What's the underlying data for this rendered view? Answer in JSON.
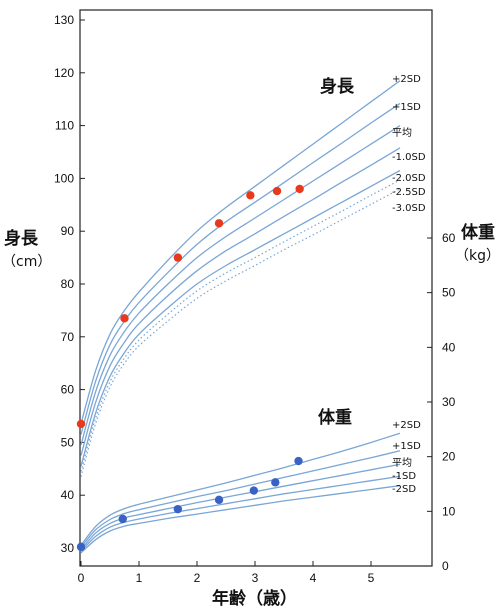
{
  "chart_data": {
    "type": "line",
    "xlabel": "年齢（歳）",
    "x_ticks": [
      "0",
      "1",
      "2",
      "3",
      "4",
      "5"
    ],
    "xlim": [
      0,
      5.5
    ],
    "left_axis": {
      "label_line1": "身長",
      "label_line2": "（cm）",
      "ticks": [
        "30",
        "40",
        "50",
        "60",
        "70",
        "80",
        "90",
        "100",
        "110",
        "120",
        "130"
      ],
      "ylim": [
        30,
        130
      ]
    },
    "right_axis": {
      "label_line1": "体重",
      "label_line2": "（kg）",
      "ticks": [
        "0",
        "10",
        "20",
        "30",
        "40",
        "50",
        "60"
      ],
      "ylim": [
        0,
        60
      ]
    },
    "height": {
      "title": "身長",
      "curve_color": "#7aa6d6",
      "curves": [
        {
          "name": "+2SD",
          "style": "solid",
          "points": [
            [
              0,
              53.5
            ],
            [
              0.25,
              63.5
            ],
            [
              0.5,
              70.5
            ],
            [
              0.75,
              75
            ],
            [
              1,
              78.5
            ],
            [
              1.5,
              84.5
            ],
            [
              2,
              90
            ],
            [
              2.5,
              94.5
            ],
            [
              3,
              98.5
            ],
            [
              3.5,
              102.5
            ],
            [
              4,
              106.5
            ],
            [
              4.5,
              110.5
            ],
            [
              5,
              114.5
            ],
            [
              5.5,
              118.5
            ]
          ]
        },
        {
          "name": "+1SD",
          "style": "solid",
          "points": [
            [
              0,
              51.5
            ],
            [
              0.25,
              61.5
            ],
            [
              0.5,
              68.5
            ],
            [
              0.75,
              73
            ],
            [
              1,
              76.5
            ],
            [
              1.5,
              82.2
            ],
            [
              2,
              87.5
            ],
            [
              2.5,
              91.8
            ],
            [
              3,
              95.5
            ],
            [
              3.5,
              99.2
            ],
            [
              4,
              103
            ],
            [
              4.5,
              106.7
            ],
            [
              5,
              110.5
            ],
            [
              5.5,
              114.2
            ]
          ]
        },
        {
          "name": "平均",
          "style": "solid",
          "points": [
            [
              0,
              49.5
            ],
            [
              0.25,
              59.5
            ],
            [
              0.5,
              66.5
            ],
            [
              0.75,
              71
            ],
            [
              1,
              74.5
            ],
            [
              1.5,
              80
            ],
            [
              2,
              85
            ],
            [
              2.5,
              89
            ],
            [
              3,
              92.5
            ],
            [
              3.5,
              96
            ],
            [
              4,
              99.5
            ],
            [
              4.5,
              103
            ],
            [
              5,
              106.5
            ],
            [
              5.5,
              110
            ]
          ]
        },
        {
          "name": "-1.0SD",
          "style": "solid",
          "points": [
            [
              0,
              47.5
            ],
            [
              0.25,
              57.5
            ],
            [
              0.5,
              64.5
            ],
            [
              0.75,
              69
            ],
            [
              1,
              72.5
            ],
            [
              1.5,
              77.8
            ],
            [
              2,
              82.5
            ],
            [
              2.5,
              86.3
            ],
            [
              3,
              89.5
            ],
            [
              3.5,
              92.8
            ],
            [
              4,
              96
            ],
            [
              4.5,
              99.3
            ],
            [
              5,
              102.5
            ],
            [
              5.5,
              105.8
            ]
          ]
        },
        {
          "name": "-2.0SD",
          "style": "solid",
          "points": [
            [
              0,
              45.5
            ],
            [
              0.25,
              55.5
            ],
            [
              0.5,
              62.5
            ],
            [
              0.75,
              67
            ],
            [
              1,
              70.5
            ],
            [
              1.5,
              75.5
            ],
            [
              2,
              80
            ],
            [
              2.5,
              83.5
            ],
            [
              3,
              86.5
            ],
            [
              3.5,
              89.5
            ],
            [
              4,
              92.5
            ],
            [
              4.5,
              95.5
            ],
            [
              5,
              98.5
            ],
            [
              5.5,
              101.5
            ]
          ]
        },
        {
          "name": "-2.5SD",
          "style": "dotted",
          "points": [
            [
              0,
              44.5
            ],
            [
              0.25,
              54.5
            ],
            [
              0.5,
              61.5
            ],
            [
              0.75,
              66
            ],
            [
              1,
              69.4
            ],
            [
              1.5,
              74.3
            ],
            [
              2,
              78.7
            ],
            [
              2.5,
              82.1
            ],
            [
              3,
              85
            ],
            [
              3.5,
              88
            ],
            [
              4,
              90.9
            ],
            [
              4.5,
              93.8
            ],
            [
              5,
              96.8
            ],
            [
              5.5,
              99.7
            ]
          ]
        },
        {
          "name": "-3.0SD",
          "style": "dotted",
          "points": [
            [
              0,
              43.5
            ],
            [
              0.25,
              53.5
            ],
            [
              0.5,
              60.5
            ],
            [
              0.75,
              65
            ],
            [
              1,
              68.3
            ],
            [
              1.5,
              73
            ],
            [
              2,
              77.3
            ],
            [
              2.5,
              80.6
            ],
            [
              3,
              83.5
            ],
            [
              3.5,
              86.5
            ],
            [
              4,
              89.3
            ],
            [
              4.5,
              92.2
            ],
            [
              5,
              95.1
            ],
            [
              5.5,
              98
            ]
          ]
        }
      ],
      "patient_points": {
        "color": "#e8391c",
        "points": [
          [
            0,
            53.5
          ],
          [
            0.75,
            73.5
          ],
          [
            1.67,
            85
          ],
          [
            2.38,
            91.5
          ],
          [
            2.92,
            96.8
          ],
          [
            3.38,
            97.6
          ],
          [
            3.77,
            98
          ]
        ]
      }
    },
    "weight": {
      "title": "体重",
      "curve_color": "#7aa6d6",
      "curves": [
        {
          "name": "+2SD",
          "style": "solid",
          "points": [
            [
              0,
              3.8
            ],
            [
              0.25,
              7.2
            ],
            [
              0.5,
              9.3
            ],
            [
              0.75,
              10.5
            ],
            [
              1,
              11.3
            ],
            [
              1.5,
              12.6
            ],
            [
              2,
              13.9
            ],
            [
              2.5,
              15.2
            ],
            [
              3,
              16.6
            ],
            [
              3.5,
              18
            ],
            [
              4,
              19.5
            ],
            [
              4.5,
              21
            ],
            [
              5,
              22.6
            ],
            [
              5.5,
              24.3
            ]
          ]
        },
        {
          "name": "+1SD",
          "style": "solid",
          "points": [
            [
              0,
              3.4
            ],
            [
              0.25,
              6.6
            ],
            [
              0.5,
              8.5
            ],
            [
              0.75,
              9.6
            ],
            [
              1,
              10.3
            ],
            [
              1.5,
              11.5
            ],
            [
              2,
              12.7
            ],
            [
              2.5,
              13.8
            ],
            [
              3,
              15
            ],
            [
              3.5,
              16.2
            ],
            [
              4,
              17.4
            ],
            [
              4.5,
              18.6
            ],
            [
              5,
              19.8
            ],
            [
              5.5,
              21.1
            ]
          ]
        },
        {
          "name": "平均",
          "style": "solid",
          "points": [
            [
              0,
              3
            ],
            [
              0.25,
              6
            ],
            [
              0.5,
              7.8
            ],
            [
              0.75,
              8.8
            ],
            [
              1,
              9.4
            ],
            [
              1.5,
              10.5
            ],
            [
              2,
              11.6
            ],
            [
              2.5,
              12.6
            ],
            [
              3,
              13.6
            ],
            [
              3.5,
              14.6
            ],
            [
              4,
              15.6
            ],
            [
              4.5,
              16.6
            ],
            [
              5,
              17.6
            ],
            [
              5.5,
              18.6
            ]
          ]
        },
        {
          "name": "-1SD",
          "style": "solid",
          "points": [
            [
              0,
              2.7
            ],
            [
              0.25,
              5.4
            ],
            [
              0.5,
              7.1
            ],
            [
              0.75,
              8
            ],
            [
              1,
              8.6
            ],
            [
              1.5,
              9.6
            ],
            [
              2,
              10.5
            ],
            [
              2.5,
              11.4
            ],
            [
              3,
              12.3
            ],
            [
              3.5,
              13.2
            ],
            [
              4,
              14
            ],
            [
              4.5,
              14.8
            ],
            [
              5,
              15.6
            ],
            [
              5.5,
              16.4
            ]
          ]
        },
        {
          "name": "-2SD",
          "style": "solid",
          "points": [
            [
              0,
              2.4
            ],
            [
              0.25,
              4.8
            ],
            [
              0.5,
              6.4
            ],
            [
              0.75,
              7.3
            ],
            [
              1,
              7.8
            ],
            [
              1.5,
              8.7
            ],
            [
              2,
              9.5
            ],
            [
              2.5,
              10.3
            ],
            [
              3,
              11.1
            ],
            [
              3.5,
              11.9
            ],
            [
              4,
              12.6
            ],
            [
              4.5,
              13.3
            ],
            [
              5,
              14
            ],
            [
              5.5,
              14.7
            ]
          ]
        }
      ],
      "patient_points": {
        "color": "#3a62c4",
        "points": [
          [
            0,
            3.5
          ],
          [
            0.72,
            8.6
          ],
          [
            1.67,
            10.4
          ],
          [
            2.38,
            12.1
          ],
          [
            2.98,
            13.8
          ],
          [
            3.35,
            15.3
          ],
          [
            3.75,
            19.2
          ]
        ]
      }
    }
  }
}
